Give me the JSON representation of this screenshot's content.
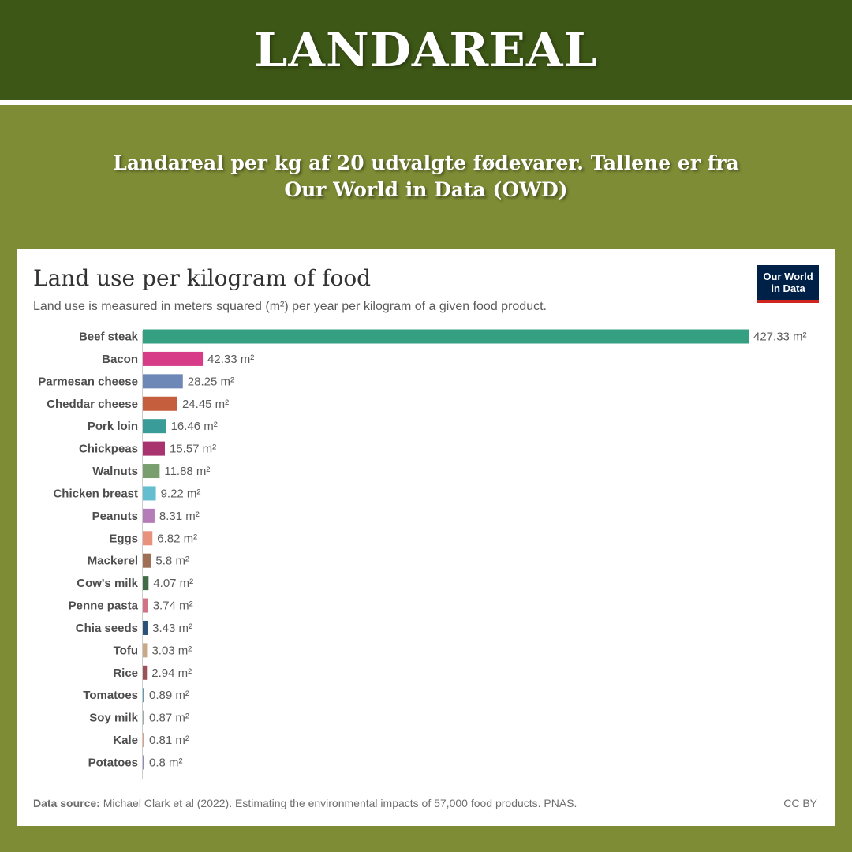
{
  "banner": {
    "title": "LANDAREAL"
  },
  "subtitle": {
    "line1": "Landareal per kg af 20 udvalgte fødevarer. Tallene er fra",
    "line2": "Our World in Data (OWD)"
  },
  "logo": {
    "line1": "Our World",
    "line2": "in Data"
  },
  "chart_data": {
    "type": "bar",
    "orientation": "horizontal",
    "title": "Land use per kilogram of food",
    "subtitle": "Land use is measured in meters squared (m²) per year per kilogram of a given food product.",
    "unit": "m²",
    "categories": [
      "Beef steak",
      "Bacon",
      "Parmesan cheese",
      "Cheddar cheese",
      "Pork loin",
      "Chickpeas",
      "Walnuts",
      "Chicken breast",
      "Peanuts",
      "Eggs",
      "Mackerel",
      "Cow's milk",
      "Penne pasta",
      "Chia seeds",
      "Tofu",
      "Rice",
      "Tomatoes",
      "Soy milk",
      "Kale",
      "Potatoes"
    ],
    "values": [
      427.33,
      42.33,
      28.25,
      24.45,
      16.46,
      15.57,
      11.88,
      9.22,
      8.31,
      6.82,
      5.8,
      4.07,
      3.74,
      3.43,
      3.03,
      2.94,
      0.89,
      0.87,
      0.81,
      0.8
    ],
    "value_labels": [
      "427.33 m²",
      "42.33 m²",
      "28.25 m²",
      "24.45 m²",
      "16.46 m²",
      "15.57 m²",
      "11.88 m²",
      "9.22 m²",
      "8.31 m²",
      "6.82 m²",
      "5.8 m²",
      "4.07 m²",
      "3.74 m²",
      "3.43 m²",
      "3.03 m²",
      "2.94 m²",
      "0.89 m²",
      "0.87 m²",
      "0.81 m²",
      "0.8 m²"
    ],
    "colors": [
      "#359f81",
      "#d63c88",
      "#6d87b6",
      "#c45e3c",
      "#3a9c99",
      "#a9336f",
      "#7a9f6f",
      "#63bfcf",
      "#b57db8",
      "#e8927e",
      "#9e6e55",
      "#3f6b45",
      "#d37283",
      "#2b527a",
      "#c9a886",
      "#9d5058",
      "#5e9bb0",
      "#9ab0a2",
      "#d9a087",
      "#8b8fb8"
    ],
    "xlim": [
      0,
      427.33
    ],
    "grid": false,
    "legend": "none",
    "source_label": "Data source:",
    "source": "Michael Clark et al (2022). Estimating the environmental impacts of 57,000 food products. PNAS.",
    "license": "CC BY"
  }
}
